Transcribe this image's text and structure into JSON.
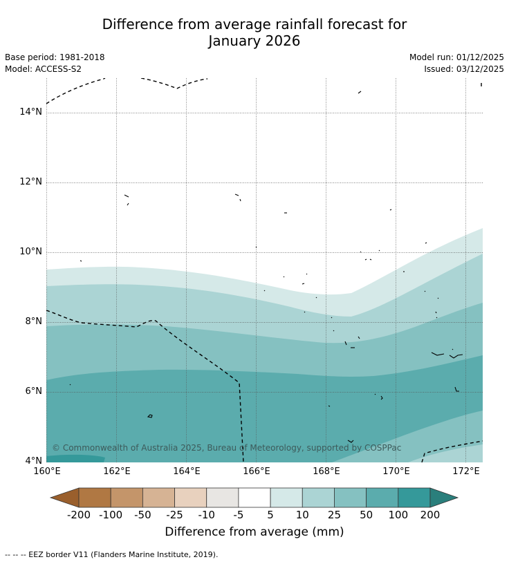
{
  "header": {
    "title_line1": "Difference from average rainfall forecast for",
    "title_line2": "January 2026",
    "base_period": "Base period: 1981-2018",
    "model": "Model: ACCESS-S2",
    "model_run": "Model run: 01/12/2025",
    "issued": "Issued: 03/12/2025"
  },
  "map": {
    "lat_labels": [
      "14°N",
      "12°N",
      "10°N",
      "8°N",
      "6°N",
      "4°N"
    ],
    "lon_labels": [
      "160°E",
      "162°E",
      "164°E",
      "166°E",
      "168°E",
      "170°E",
      "172°E"
    ],
    "credit": "© Commonwealth of Australia 2025, Bureau of Meteorology, supported by COSPPac",
    "extent": {
      "lon_min": 160,
      "lon_max": 172.5,
      "lat_min": 4,
      "lat_max": 15
    },
    "colors": {
      "gt200": "#2a7f7c",
      "100_200": "#35999a",
      "50_100": "#5bacad",
      "25_50": "#85c1c1",
      "10_25": "#abd4d4",
      "5_10": "#d5e9e8",
      "neg5_5": "#ffffff"
    }
  },
  "colorbar": {
    "title": "Difference from average (mm)",
    "ticks": [
      "-200",
      "-100",
      "-50",
      "-25",
      "-10",
      "-5",
      "5",
      "10",
      "25",
      "50",
      "100",
      "200"
    ],
    "colors": [
      "#9a5f2c",
      "#b07843",
      "#c4956a",
      "#d6b394",
      "#e8d1be",
      "#e8e6e3",
      "#ffffff",
      "#d5e9e8",
      "#abd4d4",
      "#85c1c1",
      "#5bacad",
      "#35999a",
      "#2a7f7c"
    ]
  },
  "footer": {
    "legend": "-- -- -- EEZ border V11 (Flanders Marine Institute, 2019)."
  }
}
